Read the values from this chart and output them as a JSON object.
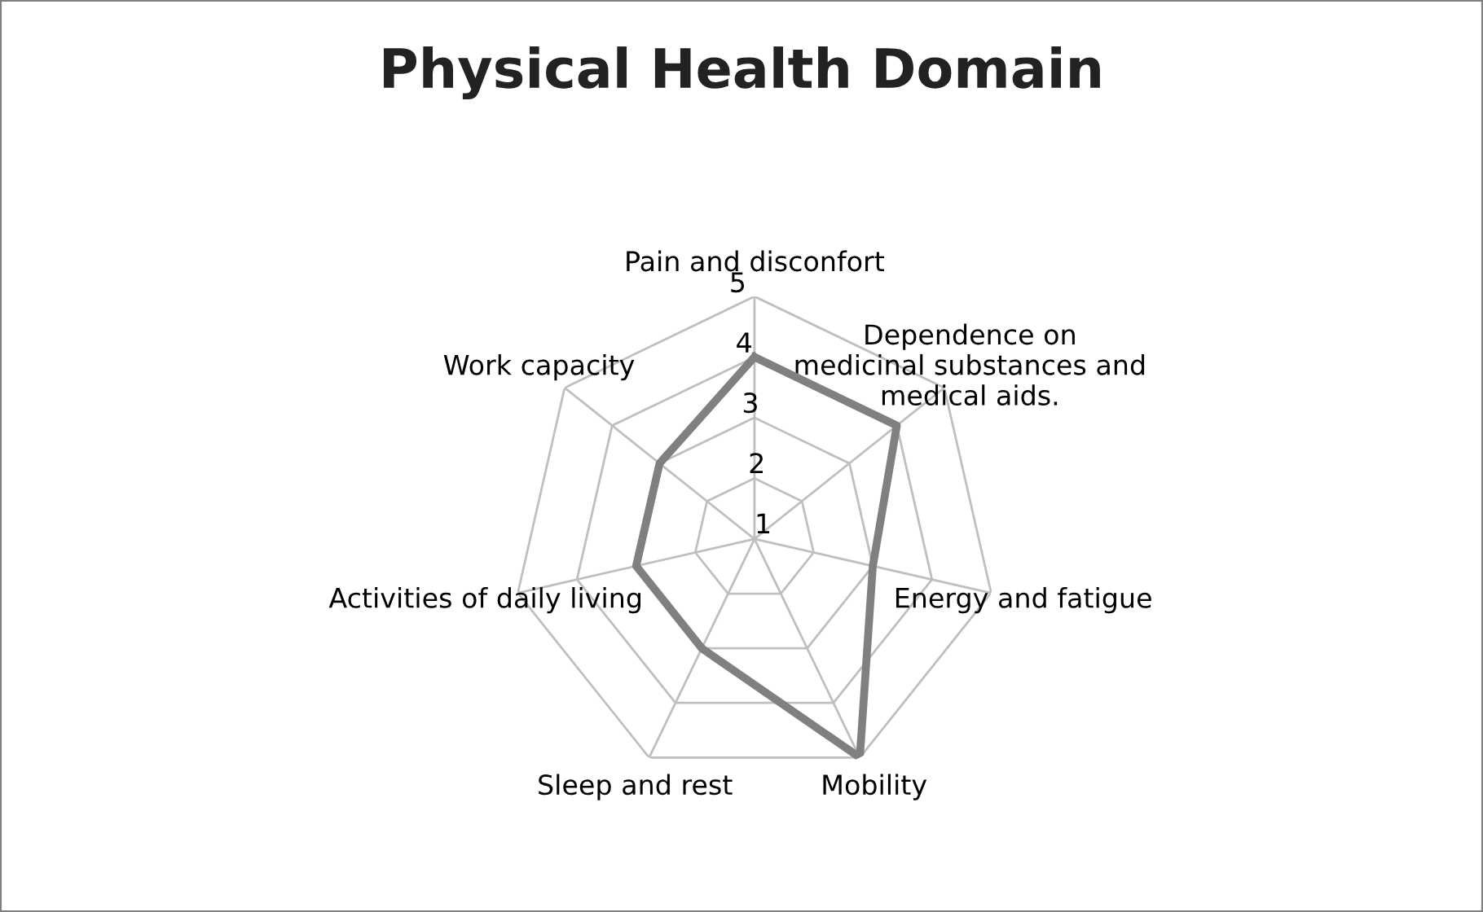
{
  "chart_data": {
    "type": "radar",
    "title": "Physical Health Domain",
    "categories": [
      "Pain and disconfort",
      "Dependence on\nmedicinal substances and\nmedical aids.",
      "Energy and fatigue",
      "Mobility",
      "Sleep and rest",
      "Activities of daily living",
      "Work capacity"
    ],
    "series": [
      {
        "color": "#808080",
        "values": [
          4,
          4,
          3,
          5,
          3,
          3,
          3
        ]
      }
    ],
    "ylim": [
      1,
      5
    ],
    "yticks": [
      1,
      2,
      3,
      4,
      5
    ],
    "grid": true,
    "marker": "none",
    "line_style": "solid"
  }
}
